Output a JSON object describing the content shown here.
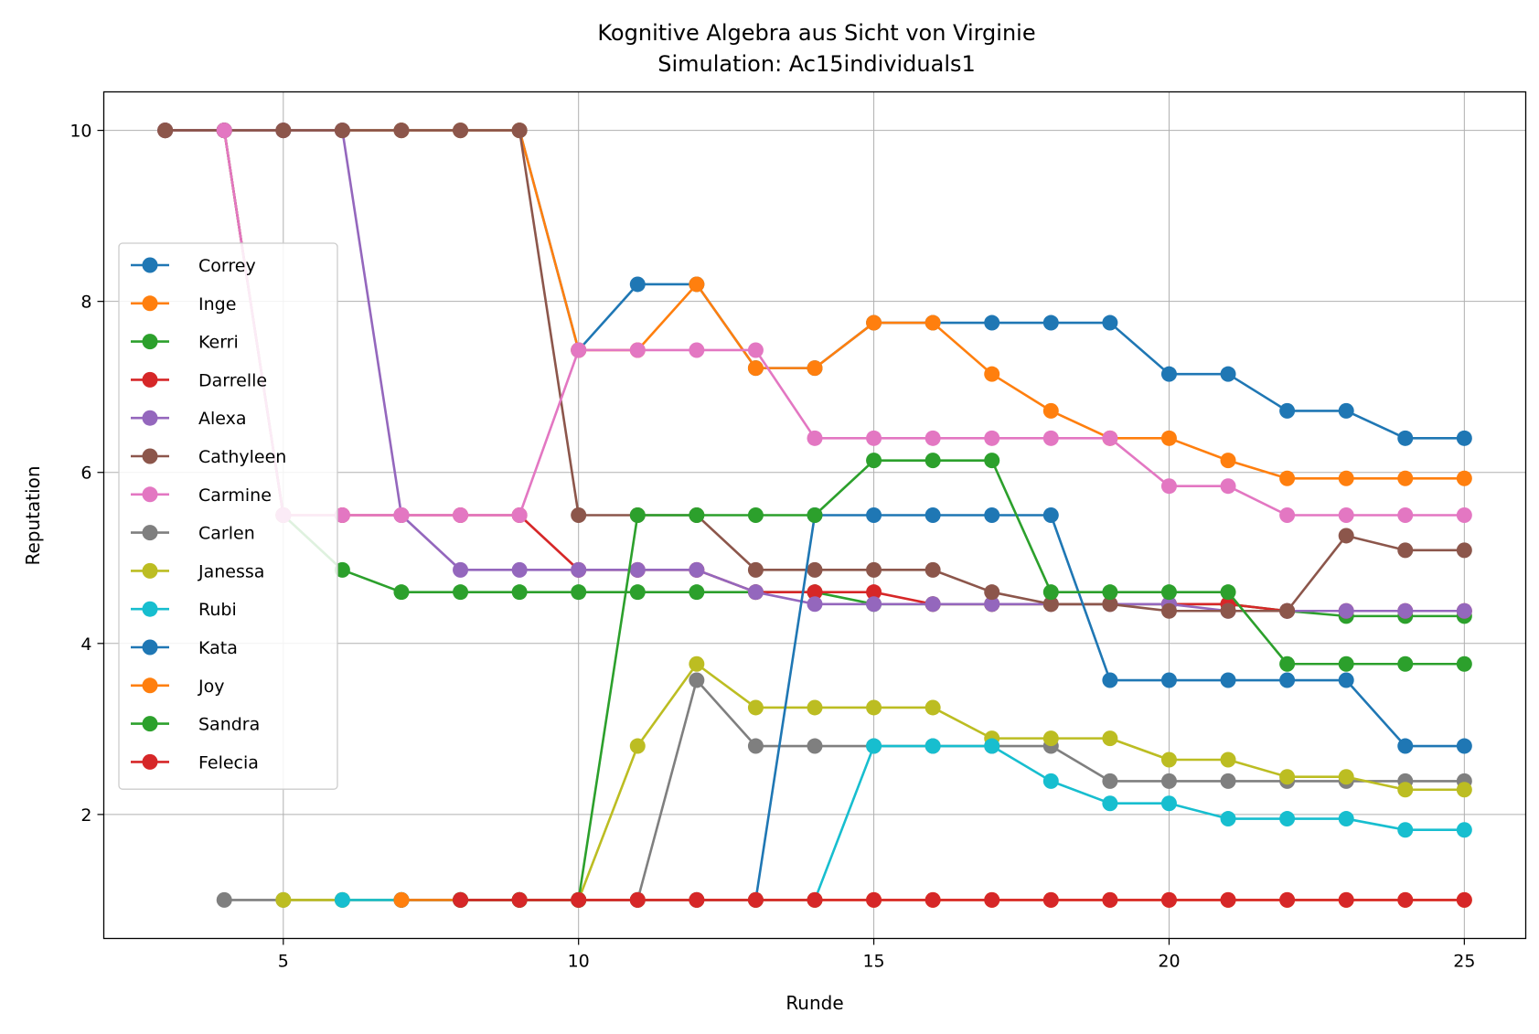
{
  "chart_data": {
    "type": "line",
    "title": "Kognitive Algebra aus Sicht von Virginie",
    "subtitle": "Simulation: Ac15individuals1",
    "xlabel": "Runde",
    "ylabel": "Reputation",
    "xlim": [
      1.96,
      26.04
    ],
    "ylim": [
      0.55,
      10.45
    ],
    "xticks": [
      5,
      10,
      15,
      20,
      25
    ],
    "yticks": [
      2,
      4,
      6,
      8,
      10
    ],
    "grid": true,
    "legend_position": "center-left",
    "series": [
      {
        "name": "Correy",
        "color": "#1f77b4",
        "x": [
          3,
          4,
          5,
          6,
          7,
          8,
          9,
          10,
          11,
          12,
          13,
          14,
          15,
          16,
          17,
          18,
          19,
          20,
          21,
          22,
          23,
          24,
          25
        ],
        "y": [
          10,
          10,
          10,
          10,
          10,
          10,
          10,
          7.43,
          8.2,
          8.2,
          7.22,
          7.22,
          7.75,
          7.75,
          7.75,
          7.75,
          7.75,
          7.15,
          7.15,
          6.72,
          6.72,
          6.4,
          6.4
        ]
      },
      {
        "name": "Inge",
        "color": "#ff7f0e",
        "x": [
          3,
          4,
          5,
          6,
          7,
          8,
          9,
          10,
          11,
          12,
          13,
          14,
          15,
          16,
          17,
          18,
          19,
          20,
          21,
          22,
          23,
          24,
          25
        ],
        "y": [
          10,
          10,
          10,
          10,
          10,
          10,
          10,
          7.43,
          7.43,
          8.2,
          7.22,
          7.22,
          7.75,
          7.75,
          7.15,
          6.72,
          6.4,
          6.4,
          6.14,
          5.93,
          5.93,
          5.93,
          5.93
        ]
      },
      {
        "name": "Kerri",
        "color": "#2ca02c",
        "x": [
          3,
          4,
          5,
          6,
          7,
          8,
          9,
          10,
          11,
          12,
          13,
          14,
          15,
          16,
          17,
          18,
          19,
          20,
          21,
          22,
          23,
          24,
          25
        ],
        "y": [
          10,
          10,
          5.5,
          4.86,
          4.6,
          4.6,
          4.6,
          4.6,
          4.6,
          4.6,
          4.6,
          4.6,
          4.46,
          4.46,
          4.46,
          4.46,
          4.46,
          4.46,
          4.46,
          4.38,
          4.32,
          4.32,
          4.32
        ]
      },
      {
        "name": "Darrelle",
        "color": "#d62728",
        "x": [
          3,
          4,
          5,
          6,
          7,
          8,
          9,
          10,
          11,
          12,
          13,
          14,
          15,
          16,
          17,
          18,
          19,
          20,
          21,
          22,
          23,
          24,
          25
        ],
        "y": [
          10,
          10,
          5.5,
          5.5,
          5.5,
          5.5,
          5.5,
          4.86,
          4.86,
          4.86,
          4.6,
          4.6,
          4.6,
          4.46,
          4.46,
          4.46,
          4.46,
          4.46,
          4.46,
          4.38,
          4.38,
          4.38,
          4.38
        ]
      },
      {
        "name": "Alexa",
        "color": "#9467bd",
        "x": [
          3,
          4,
          5,
          6,
          7,
          8,
          9,
          10,
          11,
          12,
          13,
          14,
          15,
          16,
          17,
          18,
          19,
          20,
          21,
          22,
          23,
          24,
          25
        ],
        "y": [
          10,
          10,
          10,
          10,
          5.5,
          4.86,
          4.86,
          4.86,
          4.86,
          4.86,
          4.6,
          4.46,
          4.46,
          4.46,
          4.46,
          4.46,
          4.46,
          4.46,
          4.38,
          4.38,
          4.38,
          4.38,
          4.38
        ]
      },
      {
        "name": "Cathyleen",
        "color": "#8c564b",
        "x": [
          3,
          4,
          5,
          6,
          7,
          8,
          9,
          10,
          11,
          12,
          13,
          14,
          15,
          16,
          17,
          18,
          19,
          20,
          21,
          22,
          23,
          24,
          25
        ],
        "y": [
          10,
          10,
          10,
          10,
          10,
          10,
          10,
          5.5,
          5.5,
          5.5,
          4.86,
          4.86,
          4.86,
          4.86,
          4.6,
          4.46,
          4.46,
          4.38,
          4.38,
          4.38,
          5.26,
          5.09,
          5.09
        ]
      },
      {
        "name": "Carmine",
        "color": "#e377c2",
        "x": [
          4,
          5,
          6,
          7,
          8,
          9,
          10,
          11,
          12,
          13,
          14,
          15,
          16,
          17,
          18,
          19,
          20,
          21,
          22,
          23,
          24,
          25
        ],
        "y": [
          10,
          5.5,
          5.5,
          5.5,
          5.5,
          5.5,
          7.43,
          7.43,
          7.43,
          7.43,
          6.4,
          6.4,
          6.4,
          6.4,
          6.4,
          6.4,
          5.84,
          5.84,
          5.5,
          5.5,
          5.5,
          5.5
        ]
      },
      {
        "name": "Carlen",
        "color": "#7f7f7f",
        "x": [
          4,
          5,
          6,
          7,
          8,
          9,
          10,
          11,
          12,
          13,
          14,
          15,
          16,
          17,
          18,
          19,
          20,
          21,
          22,
          23,
          24,
          25
        ],
        "y": [
          1,
          1,
          1,
          1,
          1,
          1,
          1,
          1,
          3.57,
          2.8,
          2.8,
          2.8,
          2.8,
          2.8,
          2.8,
          2.39,
          2.39,
          2.39,
          2.39,
          2.39,
          2.39,
          2.39
        ]
      },
      {
        "name": "Janessa",
        "color": "#bcbd22",
        "x": [
          5,
          6,
          7,
          8,
          9,
          10,
          11,
          12,
          13,
          14,
          15,
          16,
          17,
          18,
          19,
          20,
          21,
          22,
          23,
          24,
          25
        ],
        "y": [
          1,
          1,
          1,
          1,
          1,
          1,
          2.8,
          3.76,
          3.25,
          3.25,
          3.25,
          3.25,
          2.89,
          2.89,
          2.89,
          2.64,
          2.64,
          2.44,
          2.44,
          2.29,
          2.29
        ]
      },
      {
        "name": "Rubi",
        "color": "#17becf",
        "x": [
          6,
          7,
          8,
          9,
          10,
          11,
          12,
          13,
          14,
          15,
          16,
          17,
          18,
          19,
          20,
          21,
          22,
          23,
          24,
          25
        ],
        "y": [
          1,
          1,
          1,
          1,
          1,
          1,
          1,
          1,
          1,
          2.8,
          2.8,
          2.8,
          2.39,
          2.13,
          2.13,
          1.95,
          1.95,
          1.95,
          1.82,
          1.82
        ]
      },
      {
        "name": "Kata",
        "color": "#1f77b4",
        "x": [
          7,
          8,
          9,
          10,
          11,
          12,
          13,
          14,
          15,
          16,
          17,
          18,
          19,
          20,
          21,
          22,
          23,
          24,
          25
        ],
        "y": [
          1,
          1,
          1,
          1,
          1,
          1,
          1,
          5.5,
          5.5,
          5.5,
          5.5,
          5.5,
          3.57,
          3.57,
          3.57,
          3.57,
          3.57,
          2.8,
          2.8
        ]
      },
      {
        "name": "Joy",
        "color": "#ff7f0e",
        "x": [
          7,
          8,
          9,
          10,
          11,
          12,
          13,
          14,
          15,
          16,
          17,
          18,
          19,
          20,
          21,
          22,
          23,
          24,
          25
        ],
        "y": [
          1,
          1,
          1,
          1,
          1,
          1,
          1,
          1,
          1,
          1,
          1,
          1,
          1,
          1,
          1,
          1,
          1,
          1,
          1
        ]
      },
      {
        "name": "Sandra",
        "color": "#2ca02c",
        "x": [
          8,
          9,
          10,
          11,
          12,
          13,
          14,
          15,
          16,
          17,
          18,
          19,
          20,
          21,
          22,
          23,
          24,
          25
        ],
        "y": [
          1,
          1,
          1,
          5.5,
          5.5,
          5.5,
          5.5,
          6.14,
          6.14,
          6.14,
          4.6,
          4.6,
          4.6,
          4.6,
          3.76,
          3.76,
          3.76,
          3.76
        ]
      },
      {
        "name": "Felecia",
        "color": "#d62728",
        "x": [
          8,
          9,
          10,
          11,
          12,
          13,
          14,
          15,
          16,
          17,
          18,
          19,
          20,
          21,
          22,
          23,
          24,
          25
        ],
        "y": [
          1,
          1,
          1,
          1,
          1,
          1,
          1,
          1,
          1,
          1,
          1,
          1,
          1,
          1,
          1,
          1,
          1,
          1
        ]
      }
    ]
  }
}
